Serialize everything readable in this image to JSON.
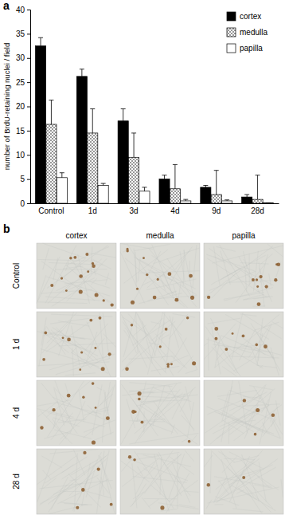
{
  "chart_data": {
    "type": "bar",
    "panel_label": "a",
    "y_label": "number of BrdU-retaining nuclei / field",
    "categories": [
      "Control",
      "1d",
      "3d",
      "4d",
      "9d",
      "28d"
    ],
    "series": [
      {
        "name": "cortex",
        "color": "#000000",
        "values": [
          32.5,
          26.2,
          17.0,
          5.0,
          3.3,
          1.3
        ],
        "errors": [
          1.7,
          1.5,
          2.5,
          0.8,
          0.4,
          0.5
        ]
      },
      {
        "name": "medulla",
        "color": "#8c8c8c",
        "values": [
          16.3,
          14.5,
          9.5,
          3.0,
          1.8,
          0.8
        ],
        "errors": [
          5.0,
          5.0,
          5.0,
          5.0,
          5.0,
          5.0
        ]
      },
      {
        "name": "papilla",
        "color": "#ffffff",
        "values": [
          5.3,
          3.7,
          2.5,
          0.5,
          0.5,
          0.1
        ],
        "errors": [
          1.0,
          0.4,
          0.8,
          0.3,
          0.2,
          0.0
        ]
      }
    ],
    "ylim": [
      0,
      40
    ],
    "yticks": [
      0,
      5,
      10,
      15,
      20,
      25,
      30,
      35,
      40
    ],
    "legend": "top-right",
    "grid": false
  },
  "image_panel": {
    "panel_label": "b",
    "columns": [
      "cortex",
      "medulla",
      "papilla"
    ],
    "rows": [
      "Control",
      "1 d",
      "4 d",
      "28 d"
    ]
  }
}
